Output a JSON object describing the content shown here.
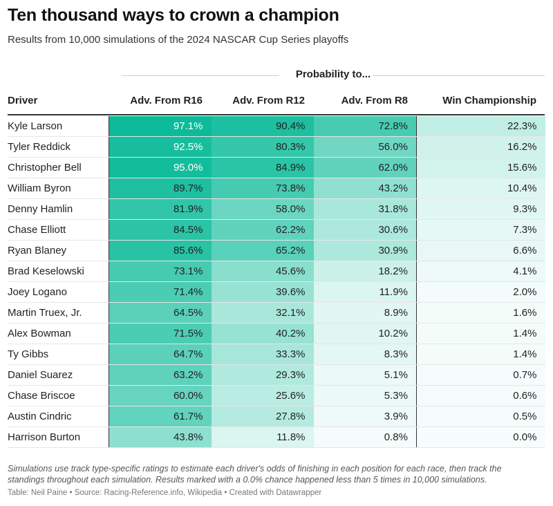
{
  "title": "Ten thousand ways to crown a champion",
  "subtitle": "Results from 10,000 simulations of the 2024 NASCAR Cup Series playoffs",
  "group_header": "Probability to...",
  "columns": {
    "driver": "Driver",
    "r16": "Adv. From R16",
    "r12": "Adv. From R12",
    "r8": "Adv. From R8",
    "champ": "Win Championship"
  },
  "heat_color": "#00b894",
  "chart_data": {
    "type": "table",
    "title": "Ten thousand ways to crown a champion",
    "columns": [
      "Driver",
      "Adv. From R16",
      "Adv. From R12",
      "Adv. From R8",
      "Win Championship"
    ],
    "rows": [
      {
        "driver": "Kyle Larson",
        "r16": "97.1%",
        "r12": "90.4%",
        "r8": "72.8%",
        "champ": "22.3%"
      },
      {
        "driver": "Tyler Reddick",
        "r16": "92.5%",
        "r12": "80.3%",
        "r8": "56.0%",
        "champ": "16.2%"
      },
      {
        "driver": "Christopher Bell",
        "r16": "95.0%",
        "r12": "84.9%",
        "r8": "62.0%",
        "champ": "15.6%"
      },
      {
        "driver": "William Byron",
        "r16": "89.7%",
        "r12": "73.8%",
        "r8": "43.2%",
        "champ": "10.4%"
      },
      {
        "driver": "Denny Hamlin",
        "r16": "81.9%",
        "r12": "58.0%",
        "r8": "31.8%",
        "champ": "9.3%"
      },
      {
        "driver": "Chase Elliott",
        "r16": "84.5%",
        "r12": "62.2%",
        "r8": "30.6%",
        "champ": "7.3%"
      },
      {
        "driver": "Ryan Blaney",
        "r16": "85.6%",
        "r12": "65.2%",
        "r8": "30.9%",
        "champ": "6.6%"
      },
      {
        "driver": "Brad Keselowski",
        "r16": "73.1%",
        "r12": "45.6%",
        "r8": "18.2%",
        "champ": "4.1%"
      },
      {
        "driver": "Joey Logano",
        "r16": "71.4%",
        "r12": "39.6%",
        "r8": "11.9%",
        "champ": "2.0%"
      },
      {
        "driver": "Martin Truex, Jr.",
        "r16": "64.5%",
        "r12": "32.1%",
        "r8": "8.9%",
        "champ": "1.6%"
      },
      {
        "driver": "Alex Bowman",
        "r16": "71.5%",
        "r12": "40.2%",
        "r8": "10.2%",
        "champ": "1.4%"
      },
      {
        "driver": "Ty Gibbs",
        "r16": "64.7%",
        "r12": "33.3%",
        "r8": "8.3%",
        "champ": "1.4%"
      },
      {
        "driver": "Daniel Suarez",
        "r16": "63.2%",
        "r12": "29.3%",
        "r8": "5.1%",
        "champ": "0.7%"
      },
      {
        "driver": "Chase Briscoe",
        "r16": "60.0%",
        "r12": "25.6%",
        "r8": "5.3%",
        "champ": "0.6%"
      },
      {
        "driver": "Austin Cindric",
        "r16": "61.7%",
        "r12": "27.8%",
        "r8": "3.9%",
        "champ": "0.5%"
      },
      {
        "driver": "Harrison Burton",
        "r16": "43.8%",
        "r12": "11.8%",
        "r8": "0.8%",
        "champ": "0.0%"
      }
    ]
  },
  "notes": "Simulations use track type-specific ratings to estimate each driver's odds of finishing in each position for each race, then track the standings throughout each simulation. Results marked with a 0.0% chance happened less than 5 times in 10,000 simulations.",
  "source": "Table: Neil Paine • Source: Racing-Reference.info, Wikipedia • Created with Datawrapper"
}
